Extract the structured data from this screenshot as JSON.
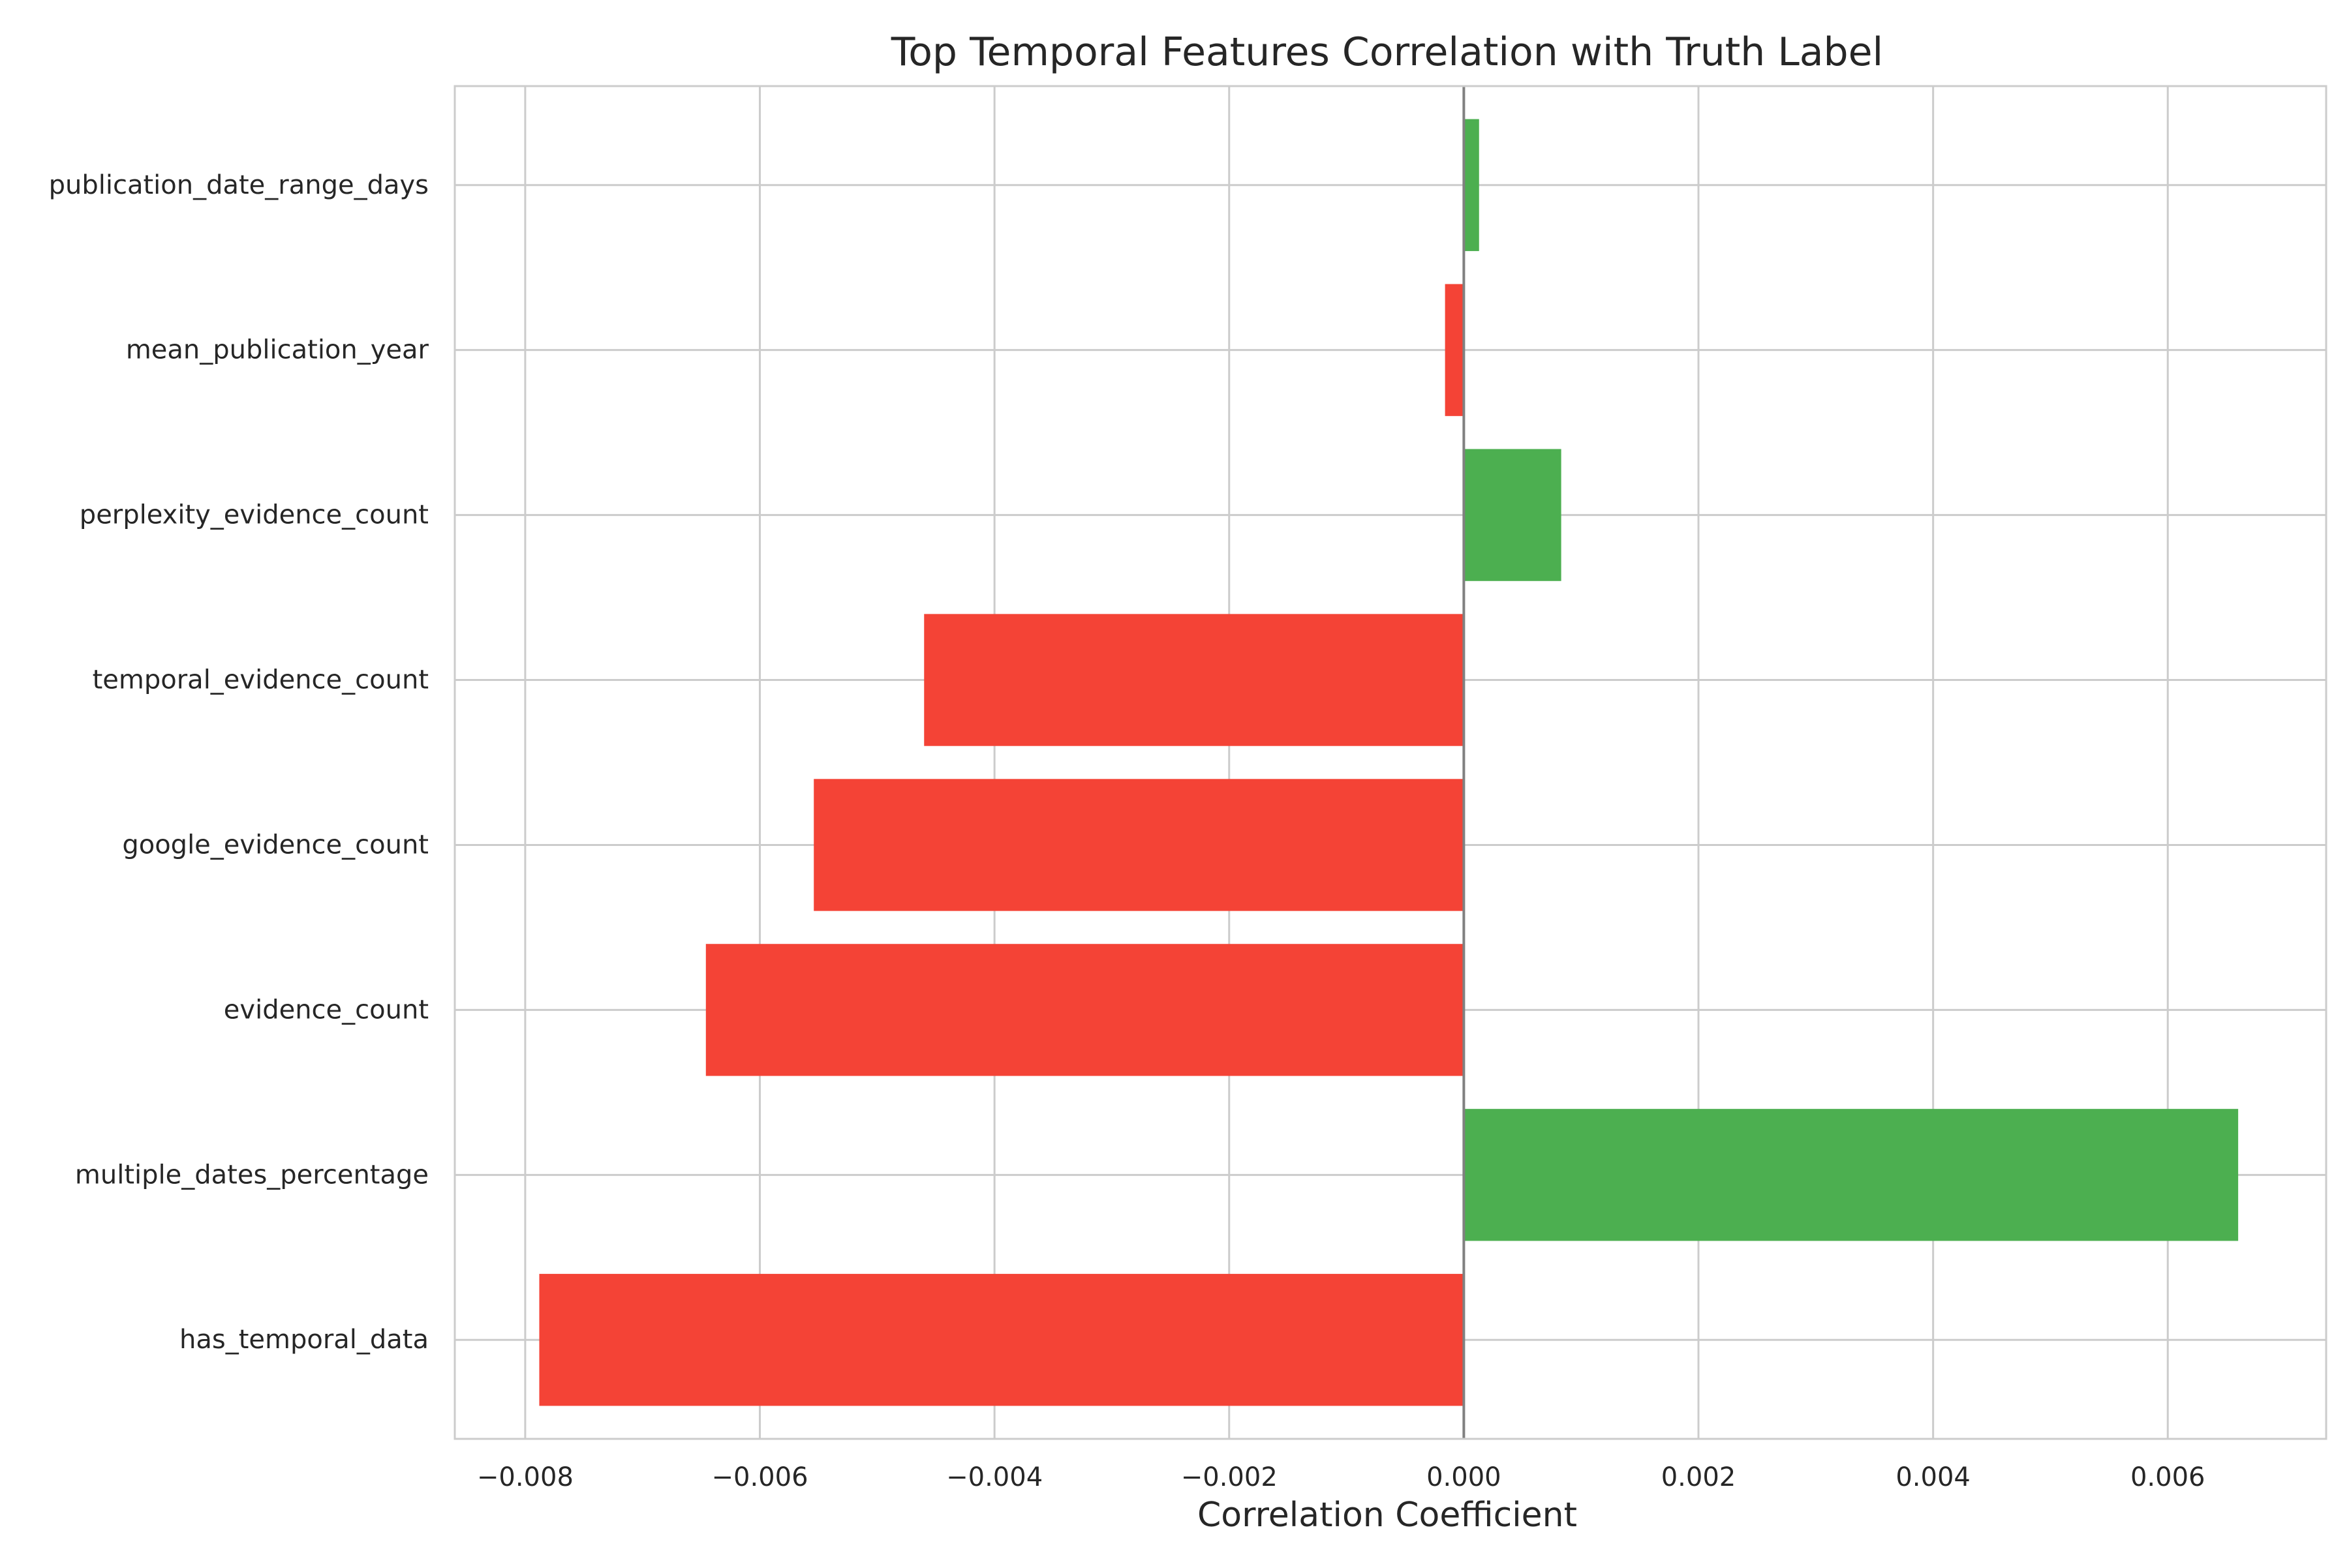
{
  "chart_data": {
    "type": "bar",
    "orientation": "horizontal",
    "title": "Top Temporal Features Correlation with Truth Label",
    "xlabel": "Correlation Coefficient",
    "ylabel": "",
    "categories": [
      "publication_date_range_days",
      "mean_publication_year",
      "perplexity_evidence_count",
      "temporal_evidence_count",
      "google_evidence_count",
      "evidence_count",
      "multiple_dates_percentage",
      "has_temporal_data"
    ],
    "values": [
      0.00013,
      -0.00016,
      0.00083,
      -0.0046,
      -0.00554,
      -0.00646,
      0.0066,
      -0.00788
    ],
    "xlim": [
      -0.0086,
      0.00735
    ],
    "xticks": [
      -0.008,
      -0.006,
      -0.004,
      -0.002,
      0.0,
      0.002,
      0.004,
      0.006
    ],
    "xtick_labels": [
      "−0.008",
      "−0.006",
      "−0.004",
      "−0.002",
      "0.000",
      "0.002",
      "0.004",
      "0.006"
    ],
    "grid": true,
    "legend": "none",
    "colors": {
      "positive": "#4caf50",
      "negative": "#f44336",
      "zero_line": "#808080",
      "grid": "#cccccc",
      "frame": "#cccccc"
    }
  }
}
